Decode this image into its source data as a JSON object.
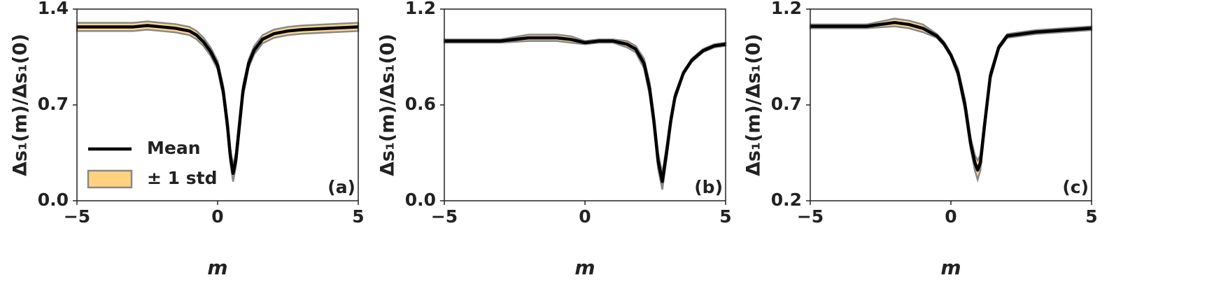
{
  "chart_data": [
    {
      "type": "line",
      "xlabel": "m",
      "ylabel": "Δs₁(m)/Δs₁(0)",
      "panel_label": "(a)",
      "xlim": [
        -5,
        5
      ],
      "xticks": [
        {
          "value": -5,
          "label": "−5"
        },
        0,
        5
      ],
      "ylim": [
        0,
        1.4
      ],
      "yticks": [
        {
          "value": 0,
          "label": "0.0"
        },
        0.7,
        1.4
      ],
      "legend": true,
      "legend_loc": "lower left",
      "x": [
        -5,
        -4,
        -3,
        -2.5,
        -2,
        -1.5,
        -1,
        -0.75,
        -0.5,
        -0.25,
        0,
        0.2,
        0.35,
        0.45,
        0.55,
        0.65,
        0.75,
        0.9,
        1.1,
        1.3,
        1.6,
        2,
        2.5,
        3,
        4,
        5
      ],
      "series": [
        {
          "name": "± 1 std",
          "color": "#ffd27f",
          "edgecolor": "#888888",
          "lower": [
            1.24,
            1.24,
            1.24,
            1.25,
            1.24,
            1.23,
            1.21,
            1.18,
            1.13,
            1.06,
            0.96,
            0.76,
            0.5,
            0.28,
            0.14,
            0.25,
            0.45,
            0.76,
            0.97,
            1.07,
            1.15,
            1.19,
            1.21,
            1.22,
            1.23,
            1.24
          ],
          "upper": [
            1.3,
            1.3,
            1.3,
            1.31,
            1.3,
            1.29,
            1.27,
            1.24,
            1.19,
            1.12,
            1.02,
            0.84,
            0.6,
            0.38,
            0.26,
            0.35,
            0.55,
            0.84,
            1.03,
            1.13,
            1.21,
            1.25,
            1.27,
            1.28,
            1.29,
            1.3
          ]
        },
        {
          "name": "Mean",
          "color": "#000000",
          "values": [
            1.27,
            1.27,
            1.27,
            1.28,
            1.27,
            1.26,
            1.24,
            1.21,
            1.16,
            1.09,
            0.99,
            0.8,
            0.55,
            0.33,
            0.2,
            0.3,
            0.5,
            0.8,
            1.0,
            1.1,
            1.18,
            1.22,
            1.24,
            1.25,
            1.26,
            1.27
          ]
        }
      ]
    },
    {
      "type": "line",
      "xlabel": "m",
      "ylabel": "Δs₁(m)/Δs₁(0)",
      "panel_label": "(b)",
      "xlim": [
        -5,
        5
      ],
      "xticks": [
        {
          "value": -5,
          "label": "−5"
        },
        0,
        5
      ],
      "ylim": [
        0,
        1.2
      ],
      "yticks": [
        {
          "value": 0,
          "label": "0.0"
        },
        0.6,
        1.2
      ],
      "legend": false,
      "x": [
        -5,
        -3,
        -2,
        -1.5,
        -1,
        -0.5,
        0,
        0.5,
        1,
        1.5,
        1.8,
        2.1,
        2.3,
        2.45,
        2.6,
        2.75,
        2.9,
        3.05,
        3.2,
        3.5,
        3.8,
        4.2,
        4.6,
        5
      ],
      "series": [
        {
          "name": "± 1 std",
          "color": "#ffd27f",
          "edgecolor": "#888888",
          "lower": [
            0.99,
            0.99,
            1.0,
            1.0,
            1.0,
            0.99,
            0.98,
            0.99,
            0.99,
            0.96,
            0.93,
            0.83,
            0.66,
            0.46,
            0.2,
            0.07,
            0.26,
            0.47,
            0.63,
            0.79,
            0.87,
            0.93,
            0.96,
            0.97
          ],
          "upper": [
            1.01,
            1.01,
            1.04,
            1.04,
            1.04,
            1.03,
            1.0,
            1.01,
            1.01,
            1.0,
            0.97,
            0.89,
            0.74,
            0.54,
            0.3,
            0.17,
            0.34,
            0.53,
            0.67,
            0.81,
            0.89,
            0.95,
            0.98,
            0.99
          ]
        },
        {
          "name": "Mean",
          "color": "#000000",
          "values": [
            1.0,
            1.0,
            1.02,
            1.02,
            1.02,
            1.01,
            0.99,
            1.0,
            1.0,
            0.98,
            0.95,
            0.86,
            0.7,
            0.5,
            0.25,
            0.12,
            0.3,
            0.5,
            0.65,
            0.8,
            0.88,
            0.94,
            0.97,
            0.98
          ]
        }
      ]
    },
    {
      "type": "line",
      "xlabel": "m",
      "ylabel": "Δs₁(m)/Δs₁(0)",
      "panel_label": "(c)",
      "xlim": [
        -5,
        5
      ],
      "xticks": [
        {
          "value": -5,
          "label": "−5"
        },
        0,
        5
      ],
      "ylim": [
        0.2,
        1.2
      ],
      "yticks": [
        0.2,
        0.7,
        1.2
      ],
      "legend": false,
      "x": [
        -5,
        -3,
        -2,
        -1.5,
        -1,
        -0.5,
        -0.25,
        0,
        0.25,
        0.5,
        0.7,
        0.85,
        0.95,
        1.05,
        1.2,
        1.4,
        1.7,
        2,
        3,
        4,
        5
      ],
      "series": [
        {
          "name": "± 1 std",
          "color": "#ffd27f",
          "edgecolor": "#888888",
          "lower": [
            1.1,
            1.1,
            1.11,
            1.1,
            1.08,
            1.05,
            1.01,
            0.95,
            0.85,
            0.67,
            0.47,
            0.36,
            0.31,
            0.36,
            0.57,
            0.83,
            0.99,
            1.05,
            1.07,
            1.08,
            1.09
          ],
          "upper": [
            1.12,
            1.12,
            1.15,
            1.14,
            1.12,
            1.07,
            1.03,
            0.97,
            0.89,
            0.73,
            0.53,
            0.44,
            0.41,
            0.44,
            0.63,
            0.87,
            1.01,
            1.07,
            1.09,
            1.1,
            1.11
          ]
        },
        {
          "name": "Mean",
          "color": "#000000",
          "values": [
            1.11,
            1.11,
            1.13,
            1.12,
            1.1,
            1.06,
            1.02,
            0.96,
            0.87,
            0.7,
            0.5,
            0.4,
            0.36,
            0.4,
            0.6,
            0.85,
            1.0,
            1.06,
            1.08,
            1.09,
            1.1
          ]
        }
      ]
    }
  ]
}
